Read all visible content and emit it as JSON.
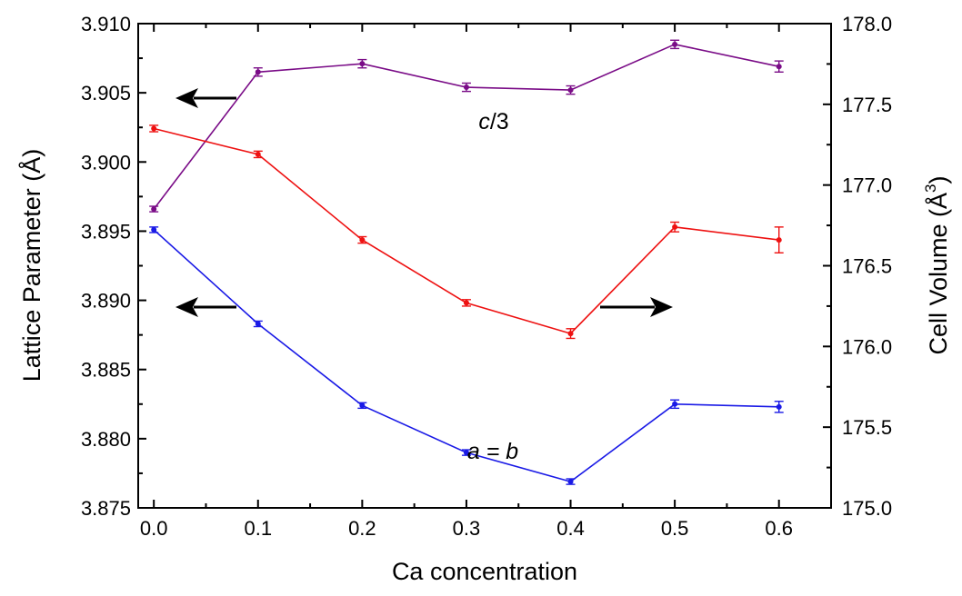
{
  "chart_data": {
    "type": "line",
    "xlabel": "Ca concentration",
    "ylabel_left": "Lattice Parameter (Å)",
    "ylabel_right_base": "Cell Volume (Å",
    "ylabel_right_sup": "3",
    "ylabel_right_close": ")",
    "xlim": [
      -0.015,
      0.65
    ],
    "ylim_left": [
      3.875,
      3.91
    ],
    "ylim_right": [
      175.0,
      178.0
    ],
    "x_ticks": [
      0.0,
      0.1,
      0.2,
      0.3,
      0.4,
      0.5,
      0.6
    ],
    "x_tick_labels": [
      "0.0",
      "0.1",
      "0.2",
      "0.3",
      "0.4",
      "0.5",
      "0.6"
    ],
    "y_left_ticks": [
      3.875,
      3.88,
      3.885,
      3.89,
      3.895,
      3.9,
      3.905,
      3.91
    ],
    "y_left_tick_labels": [
      "3.875",
      "3.880",
      "3.885",
      "3.890",
      "3.895",
      "3.900",
      "3.905",
      "3.910"
    ],
    "y_right_ticks": [
      175.0,
      175.5,
      176.0,
      176.5,
      177.0,
      177.5,
      178.0
    ],
    "y_right_tick_labels": [
      "175.0",
      "175.5",
      "176.0",
      "176.5",
      "177.0",
      "177.5",
      "178.0"
    ],
    "grid": false,
    "series": [
      {
        "axis": "left",
        "color": "#7a0c87",
        "x": [
          0.0,
          0.1,
          0.2,
          0.3,
          0.4,
          0.5,
          0.6
        ],
        "y": [
          3.8966,
          3.9065,
          3.9071,
          3.9054,
          3.9052,
          3.9085,
          3.9069
        ],
        "err": [
          0.0002,
          0.0003,
          0.0003,
          0.0003,
          0.0003,
          0.0003,
          0.0004
        ]
      },
      {
        "axis": "right",
        "color": "#ee1111",
        "x": [
          0.0,
          0.1,
          0.2,
          0.3,
          0.4,
          0.5,
          0.6
        ],
        "y": [
          177.35,
          177.19,
          176.66,
          176.27,
          176.08,
          176.74,
          176.66
        ],
        "err": [
          0.02,
          0.02,
          0.02,
          0.02,
          0.03,
          0.03,
          0.08
        ]
      },
      {
        "axis": "left",
        "color": "#1a1ae6",
        "x": [
          0.0,
          0.1,
          0.2,
          0.3,
          0.4,
          0.5,
          0.6
        ],
        "y": [
          3.8951,
          3.8883,
          3.8824,
          3.879,
          3.8769,
          3.8825,
          3.8823
        ],
        "err": [
          0.0002,
          0.0002,
          0.0002,
          0.0002,
          0.0002,
          0.0003,
          0.0004
        ]
      }
    ],
    "annotations": {
      "c_italic": "c",
      "c_rest": "/3",
      "ab": "a = b"
    }
  }
}
